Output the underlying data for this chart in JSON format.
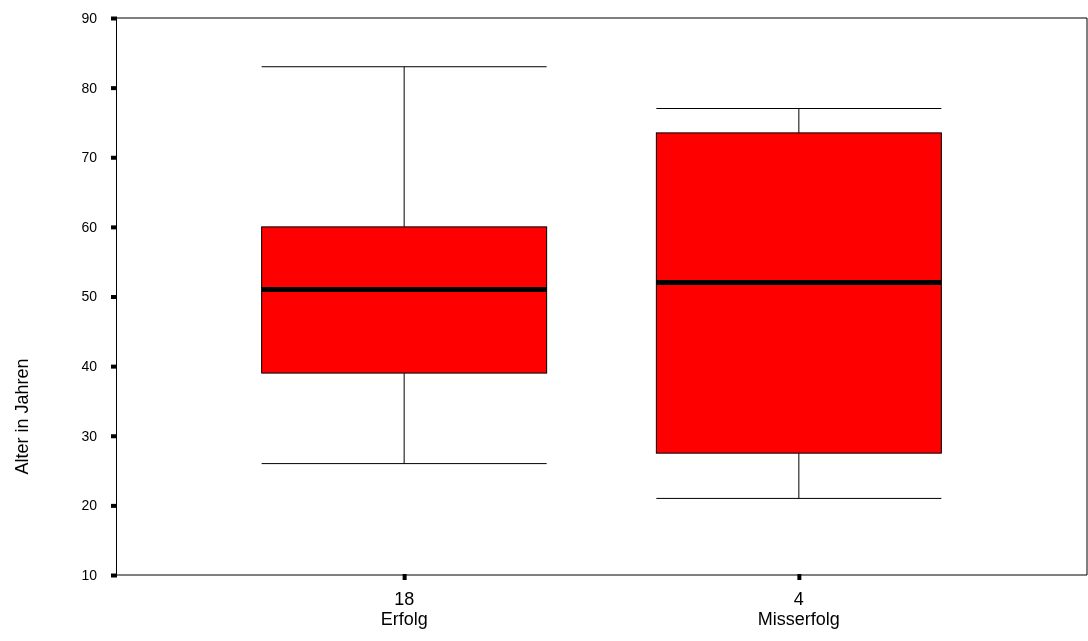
{
  "chart_data": {
    "type": "box",
    "ylabel": "Alter in Jahren",
    "categories": [
      "18\nErfolg",
      "4\nMisserfolg"
    ],
    "color": "#ff0000",
    "boxes": [
      {
        "low": 26,
        "q1": 39,
        "median": 51,
        "q3": 60,
        "high": 83
      },
      {
        "low": 21,
        "q1": 27.5,
        "median": 52,
        "q3": 73.5,
        "high": 77
      }
    ],
    "ylim": [
      10,
      90
    ],
    "yticks": [
      10,
      20,
      30,
      40,
      50,
      60,
      70,
      80,
      90
    ],
    "grid": false
  }
}
